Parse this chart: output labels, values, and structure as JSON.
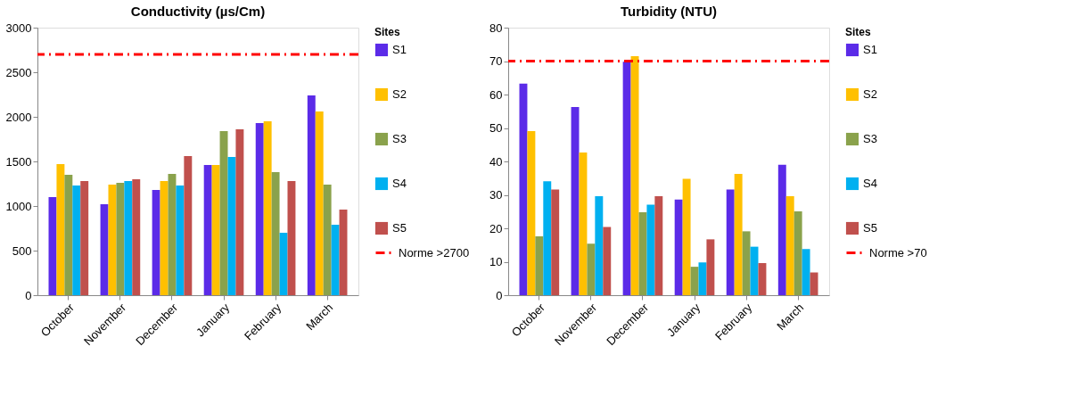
{
  "chart_data": [
    {
      "type": "bar",
      "title": "Conductivity (µs/Cm)",
      "legend_title": "Sites",
      "legend": "right",
      "grid": false,
      "categories": [
        "October",
        "November",
        "December",
        "January",
        "February",
        "March"
      ],
      "ylim": [
        0,
        3000
      ],
      "yticks": [
        0,
        500,
        1000,
        1500,
        2000,
        2500,
        3000
      ],
      "series": [
        {
          "name": "S1",
          "color": "#5b2be8",
          "values": [
            1100,
            1020,
            1180,
            1460,
            1930,
            2240
          ]
        },
        {
          "name": "S2",
          "color": "#ffc000",
          "values": [
            1470,
            1240,
            1280,
            1460,
            1950,
            2060
          ]
        },
        {
          "name": "S3",
          "color": "#8aa24c",
          "values": [
            1350,
            1260,
            1360,
            1840,
            1380,
            1240
          ]
        },
        {
          "name": "S4",
          "color": "#00b0f0",
          "values": [
            1230,
            1280,
            1230,
            1550,
            700,
            790
          ]
        },
        {
          "name": "S5",
          "color": "#c0504d",
          "values": [
            1280,
            1300,
            1560,
            1860,
            1280,
            960
          ]
        }
      ],
      "ref_lines": [
        {
          "axis": "y",
          "value": 2700,
          "label": "Norme >2700",
          "color": "#ff0000",
          "line_style": "dashdot"
        }
      ]
    },
    {
      "type": "bar",
      "title": "Turbidity (NTU)",
      "legend_title": "Sites",
      "legend": "right",
      "grid": false,
      "categories": [
        "October",
        "November",
        "December",
        "January",
        "February",
        "March"
      ],
      "ylim": [
        0,
        80
      ],
      "yticks": [
        0,
        10,
        20,
        30,
        40,
        50,
        60,
        70,
        80
      ],
      "series": [
        {
          "name": "S1",
          "color": "#5b2be8",
          "values": [
            63.3,
            56.3,
            69.8,
            28.6,
            31.6,
            39.0
          ]
        },
        {
          "name": "S2",
          "color": "#ffc000",
          "values": [
            49.1,
            42.7,
            71.5,
            34.8,
            36.3,
            29.6
          ]
        },
        {
          "name": "S3",
          "color": "#8aa24c",
          "values": [
            17.6,
            15.4,
            24.8,
            8.5,
            19.1,
            25.1
          ]
        },
        {
          "name": "S4",
          "color": "#00b0f0",
          "values": [
            34.1,
            29.6,
            27.1,
            9.8,
            14.5,
            13.8
          ]
        },
        {
          "name": "S5",
          "color": "#c0504d",
          "values": [
            31.6,
            20.4,
            29.6,
            16.7,
            9.6,
            6.8
          ]
        }
      ],
      "ref_lines": [
        {
          "axis": "y",
          "value": 70,
          "label": "Norme >70",
          "color": "#ff0000",
          "line_style": "dashdot"
        }
      ]
    }
  ]
}
